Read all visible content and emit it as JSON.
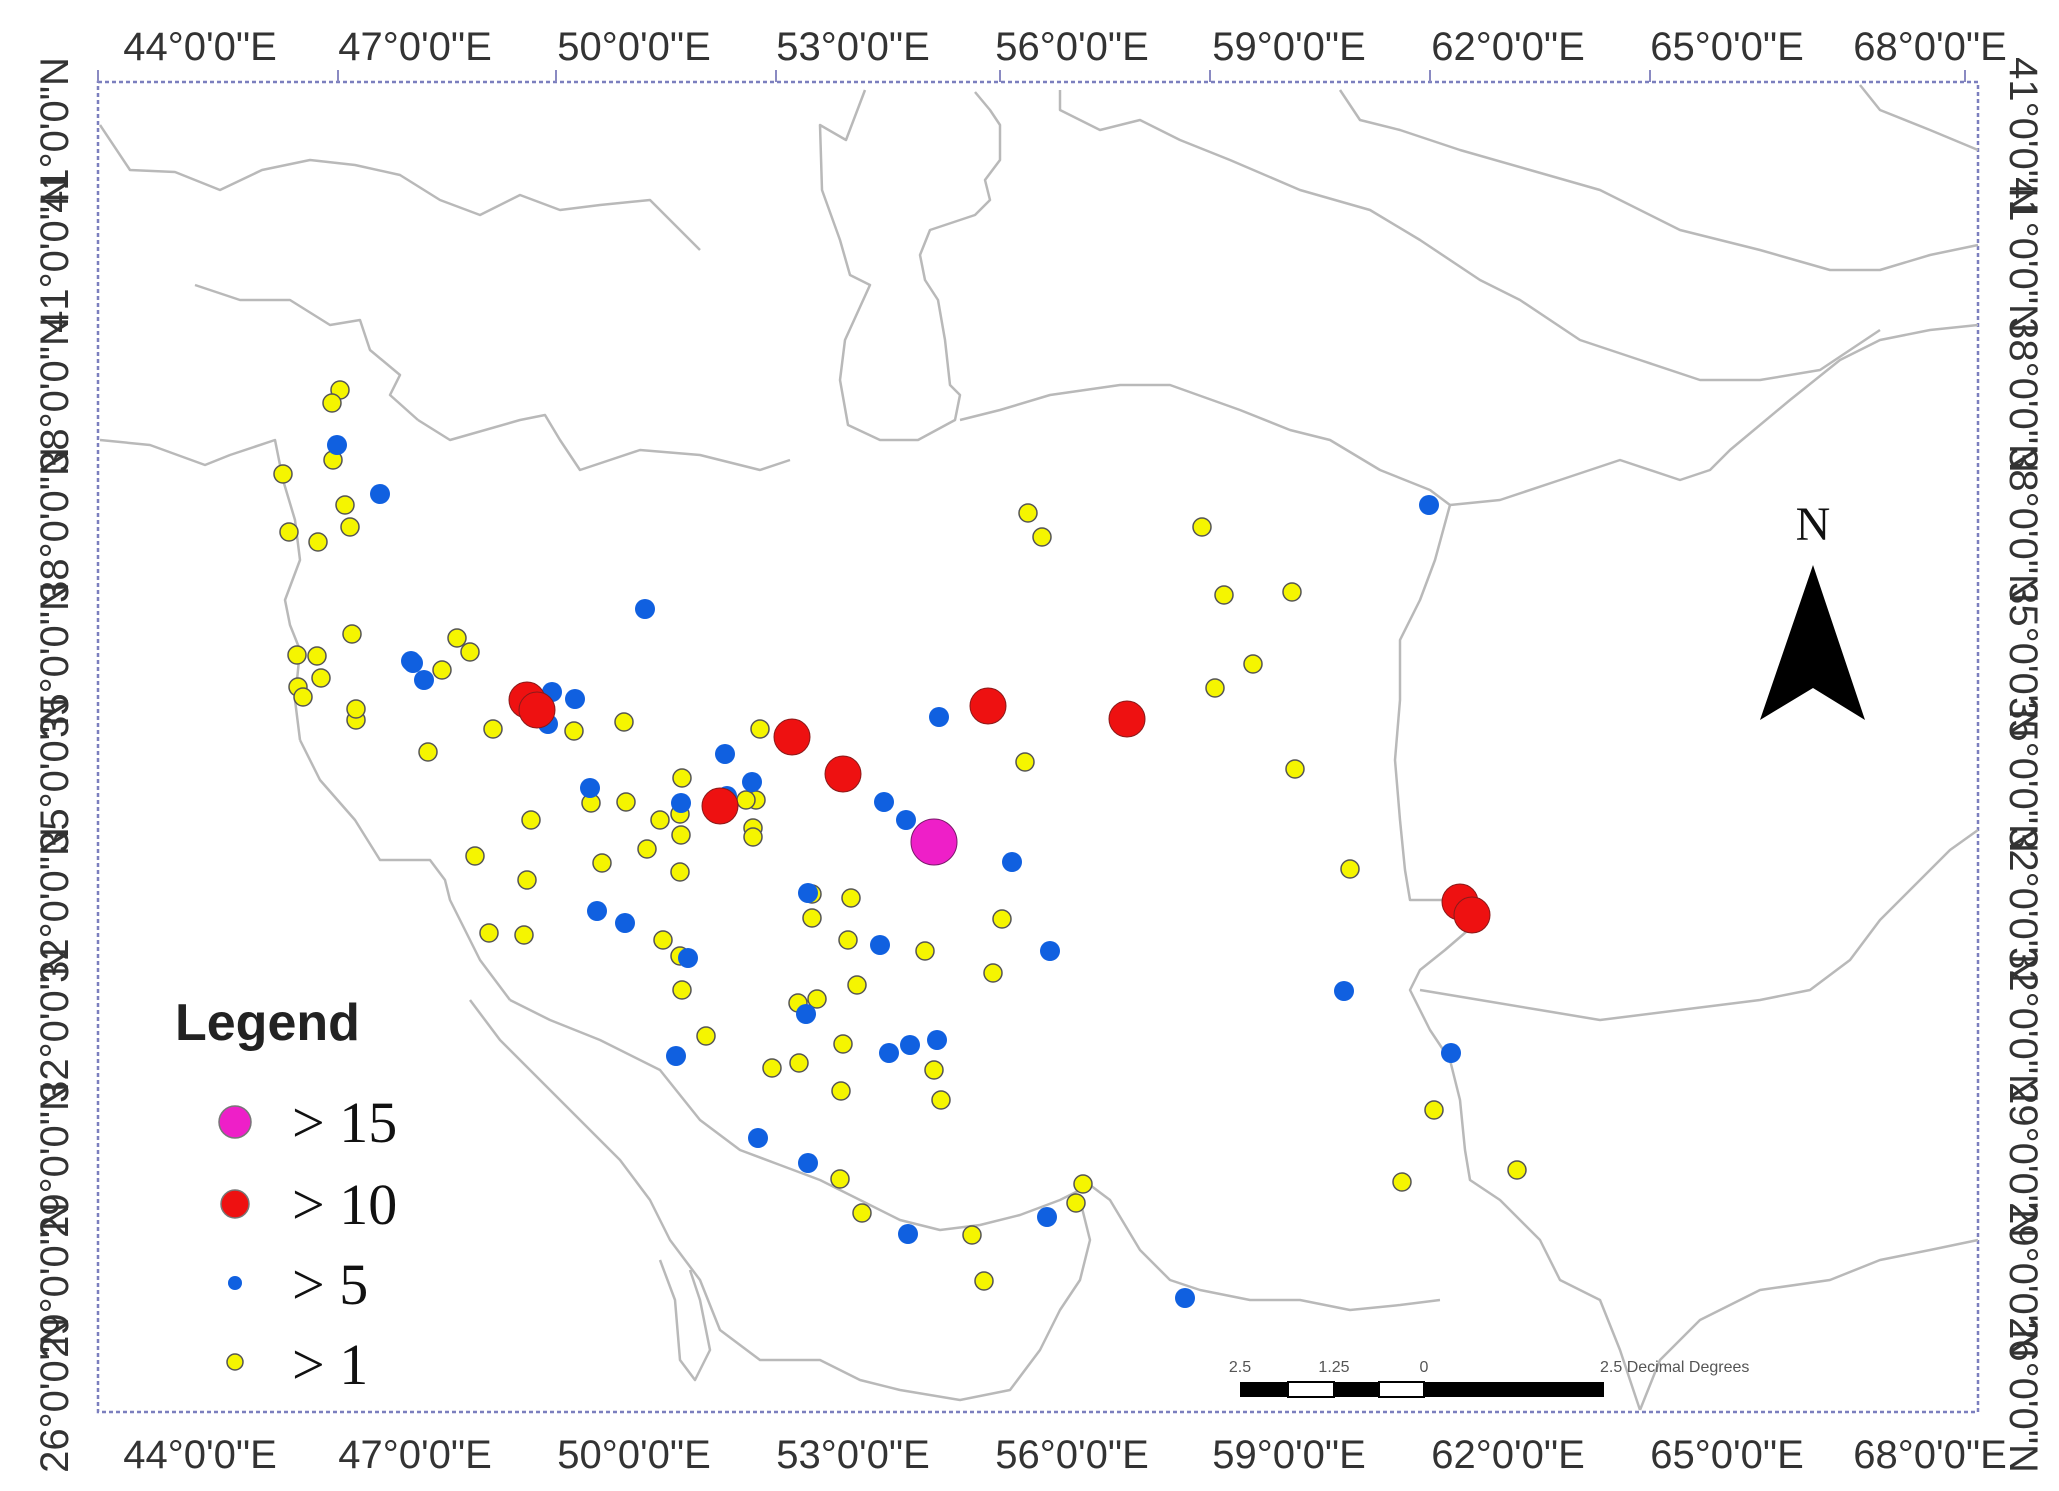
{
  "map": {
    "x_ticks": [
      "44°0'0\"E",
      "47°0'0\"E",
      "50°0'0\"E",
      "53°0'0\"E",
      "56°0'0\"E",
      "59°0'0\"E",
      "62°0'0\"E",
      "65°0'0\"E",
      "68°0'0\"E"
    ],
    "y_ticks": [
      "41°0'0\"N",
      "41°0'0\"N",
      "38°0'0\"N",
      "38°0'0\"N",
      "35°0'0\"N",
      "35°0'0\"N",
      "32°0'0\"N",
      "32°0'0\"N",
      "29°0'0\"N",
      "29°0'0\"N",
      "26°0'0\"N",
      "26°0'0\"N"
    ],
    "north_label": "N",
    "scale_labels": [
      "2.5",
      "1.25",
      "0",
      "2.5 Decimal Degrees"
    ]
  },
  "legend": {
    "title": "Legend",
    "items": [
      {
        "label": "> 15",
        "color": "#ee1fc8"
      },
      {
        "label": "> 10",
        "color": "#ee1111"
      },
      {
        "label": "> 5",
        "color": "#1060e0"
      },
      {
        "label": "> 1",
        "color": "#f5f500"
      }
    ]
  },
  "points": {
    "gt15": [
      [
        934,
        842
      ]
    ],
    "gt10": [
      [
        527,
        700
      ],
      [
        537,
        710
      ],
      [
        792,
        737
      ],
      [
        843,
        774
      ],
      [
        720,
        806
      ],
      [
        988,
        706
      ],
      [
        1127,
        719
      ],
      [
        1460,
        902
      ],
      [
        1472,
        915
      ]
    ],
    "gt5": [
      [
        337,
        445
      ],
      [
        380,
        494
      ],
      [
        645,
        609
      ],
      [
        411,
        661
      ],
      [
        413,
        663
      ],
      [
        424,
        680
      ],
      [
        590,
        788
      ],
      [
        575,
        699
      ],
      [
        552,
        692
      ],
      [
        548,
        724
      ],
      [
        725,
        754
      ],
      [
        752,
        782
      ],
      [
        727,
        796
      ],
      [
        681,
        803
      ],
      [
        884,
        802
      ],
      [
        906,
        820
      ],
      [
        939,
        717
      ],
      [
        1012,
        862
      ],
      [
        808,
        893
      ],
      [
        880,
        945
      ],
      [
        597,
        911
      ],
      [
        625,
        923
      ],
      [
        688,
        958
      ],
      [
        1050,
        951
      ],
      [
        806,
        1014
      ],
      [
        676,
        1056
      ],
      [
        889,
        1053
      ],
      [
        910,
        1045
      ],
      [
        937,
        1040
      ],
      [
        1344,
        991
      ],
      [
        1451,
        1053
      ],
      [
        1429,
        505
      ],
      [
        758,
        1138
      ],
      [
        808,
        1163
      ],
      [
        908,
        1234
      ],
      [
        1047,
        1217
      ],
      [
        1185,
        1298
      ]
    ],
    "gt1": [
      [
        340,
        390
      ],
      [
        332,
        403
      ],
      [
        283,
        474
      ],
      [
        289,
        532
      ],
      [
        318,
        542
      ],
      [
        333,
        460
      ],
      [
        345,
        505
      ],
      [
        350,
        527
      ],
      [
        297,
        655
      ],
      [
        317,
        656
      ],
      [
        298,
        687
      ],
      [
        321,
        678
      ],
      [
        303,
        697
      ],
      [
        352,
        634
      ],
      [
        356,
        720
      ],
      [
        356,
        709
      ],
      [
        428,
        752
      ],
      [
        457,
        638
      ],
      [
        470,
        652
      ],
      [
        442,
        670
      ],
      [
        493,
        729
      ],
      [
        531,
        820
      ],
      [
        591,
        803
      ],
      [
        626,
        802
      ],
      [
        680,
        814
      ],
      [
        760,
        729
      ],
      [
        756,
        800
      ],
      [
        682,
        778
      ],
      [
        624,
        722
      ],
      [
        681,
        835
      ],
      [
        574,
        731
      ],
      [
        475,
        856
      ],
      [
        489,
        933
      ],
      [
        602,
        863
      ],
      [
        527,
        880
      ],
      [
        524,
        935
      ],
      [
        647,
        849
      ],
      [
        660,
        820
      ],
      [
        680,
        872
      ],
      [
        663,
        940
      ],
      [
        680,
        956
      ],
      [
        682,
        990
      ],
      [
        706,
        1036
      ],
      [
        753,
        828
      ],
      [
        746,
        800
      ],
      [
        725,
        799
      ],
      [
        753,
        837
      ],
      [
        812,
        918
      ],
      [
        812,
        894
      ],
      [
        851,
        898
      ],
      [
        848,
        940
      ],
      [
        857,
        985
      ],
      [
        843,
        1044
      ],
      [
        841,
        1091
      ],
      [
        817,
        999
      ],
      [
        798,
        1003
      ],
      [
        799,
        1063
      ],
      [
        772,
        1068
      ],
      [
        925,
        951
      ],
      [
        934,
        1070
      ],
      [
        941,
        1100
      ],
      [
        993,
        973
      ],
      [
        1002,
        919
      ],
      [
        1025,
        762
      ],
      [
        1028,
        513
      ],
      [
        1042,
        537
      ],
      [
        1202,
        527
      ],
      [
        1224,
        595
      ],
      [
        1292,
        592
      ],
      [
        1253,
        664
      ],
      [
        1215,
        688
      ],
      [
        1295,
        769
      ],
      [
        1350,
        869
      ],
      [
        1434,
        1110
      ],
      [
        1402,
        1182
      ],
      [
        1517,
        1170
      ],
      [
        840,
        1179
      ],
      [
        862,
        1213
      ],
      [
        972,
        1235
      ],
      [
        984,
        1281
      ],
      [
        1076,
        1203
      ],
      [
        1083,
        1184
      ]
    ]
  }
}
